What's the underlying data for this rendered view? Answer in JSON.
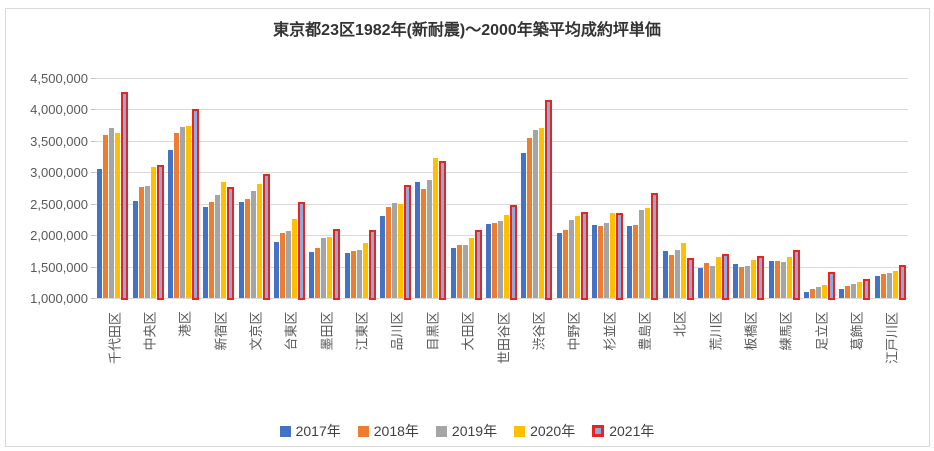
{
  "chart_data": {
    "type": "bar",
    "title": "東京都23区1982年(新耐震)～2000年築平均成約坪単価",
    "categories": [
      "千代田区",
      "中央区",
      "港区",
      "新宿区",
      "文京区",
      "台東区",
      "墨田区",
      "江東区",
      "品川区",
      "目黒区",
      "大田区",
      "世田谷区",
      "渋谷区",
      "中野区",
      "杉並区",
      "豊島区",
      "北区",
      "荒川区",
      "板橋区",
      "練馬区",
      "足立区",
      "葛飾区",
      "江戸川区"
    ],
    "series": [
      {
        "name": "2017年",
        "color": "#4472C4",
        "border_color": null,
        "values": [
          3050000,
          2550000,
          3350000,
          2450000,
          2520000,
          1890000,
          1730000,
          1720000,
          2300000,
          2850000,
          1800000,
          2180000,
          3300000,
          2040000,
          2160000,
          2140000,
          1750000,
          1470000,
          1540000,
          1590000,
          1100000,
          1140000,
          1350000
        ]
      },
      {
        "name": "2018年",
        "color": "#ED7D31",
        "border_color": null,
        "values": [
          3600000,
          2770000,
          3630000,
          2530000,
          2570000,
          2030000,
          1790000,
          1740000,
          2440000,
          2740000,
          1850000,
          2200000,
          3550000,
          2080000,
          2140000,
          2160000,
          1690000,
          1560000,
          1500000,
          1590000,
          1150000,
          1190000,
          1380000
        ]
      },
      {
        "name": "2019年",
        "color": "#A5A5A5",
        "border_color": null,
        "values": [
          3700000,
          2780000,
          3720000,
          2640000,
          2710000,
          2070000,
          1950000,
          1770000,
          2510000,
          2880000,
          1840000,
          2220000,
          3670000,
          2240000,
          2190000,
          2400000,
          1770000,
          1510000,
          1510000,
          1570000,
          1170000,
          1220000,
          1400000
        ]
      },
      {
        "name": "2020年",
        "color": "#FFC000",
        "border_color": null,
        "values": [
          3620000,
          3080000,
          3740000,
          2850000,
          2820000,
          2260000,
          1970000,
          1870000,
          2490000,
          3220000,
          1960000,
          2320000,
          3700000,
          2310000,
          2360000,
          2430000,
          1870000,
          1650000,
          1610000,
          1650000,
          1210000,
          1260000,
          1430000
        ]
      },
      {
        "name": "2021年",
        "color": "#8FAADC",
        "border_color": "#E8251D",
        "values": [
          4270000,
          3120000,
          4000000,
          2770000,
          2970000,
          2520000,
          2100000,
          2080000,
          2800000,
          3180000,
          2080000,
          2480000,
          4150000,
          2370000,
          2350000,
          2670000,
          1630000,
          1700000,
          1670000,
          1760000,
          1410000,
          1310000,
          1530000
        ]
      }
    ],
    "ylim": [
      1000000,
      4500000
    ],
    "ytick_step": 500000,
    "xlabel": "",
    "ylabel": "",
    "grid": true,
    "gridline_color": "#d9d9d9",
    "axis_text_color": "#595959",
    "legend_position": "bottom"
  }
}
